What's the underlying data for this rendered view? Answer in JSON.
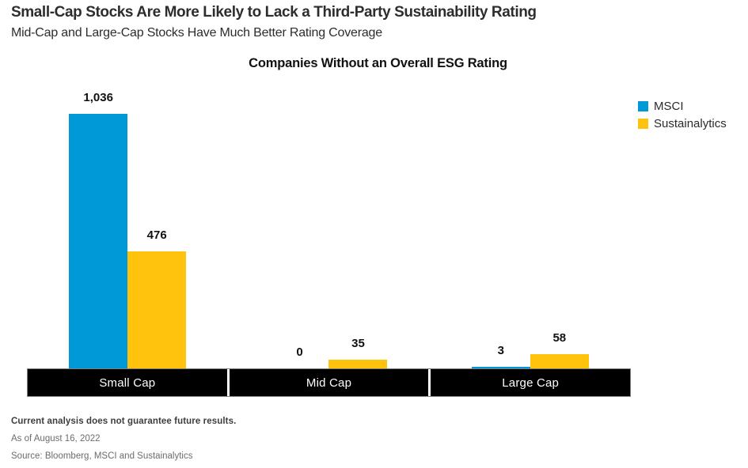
{
  "header": {
    "title": "Small-Cap Stocks Are More Likely to Lack a Third-Party Sustainability Rating",
    "subtitle": "Mid-Cap and Large-Cap Stocks Have Much Better Rating Coverage"
  },
  "chart_data": {
    "type": "bar",
    "title": "Companies Without an Overall ESG Rating",
    "categories": [
      "Small Cap",
      "Mid Cap",
      "Large Cap"
    ],
    "series": [
      {
        "name": "MSCI",
        "color": "#0099d8",
        "values": [
          1036,
          0,
          3
        ],
        "labels": [
          "1,036",
          "0",
          "3"
        ]
      },
      {
        "name": "Sustainalytics",
        "color": "#ffc20d",
        "values": [
          476,
          35,
          58
        ],
        "labels": [
          "476",
          "35",
          "58"
        ]
      }
    ],
    "ylim": [
      0,
      1100
    ],
    "grid": false,
    "axes_shown": false,
    "value_labels_shown": true,
    "legend_position": "top-right",
    "category_band_color": "#000000",
    "category_text_color": "#ffffff"
  },
  "legend": {
    "items": [
      {
        "label": "MSCI",
        "color": "#0099d8"
      },
      {
        "label": "Sustainalytics",
        "color": "#ffc20d"
      }
    ]
  },
  "footer": {
    "disclaimer": "Current analysis does not guarantee future results.",
    "as_of": "As of August 16, 2022",
    "source": "Source: Bloomberg, MSCI and Sustainalytics"
  },
  "colors": {
    "msci_blue": "#0099d8",
    "sustainalytics_yellow": "#ffc20d",
    "band_black": "#000000",
    "title_text": "#2d2d2d",
    "footer_gray": "#6b6c6e"
  }
}
